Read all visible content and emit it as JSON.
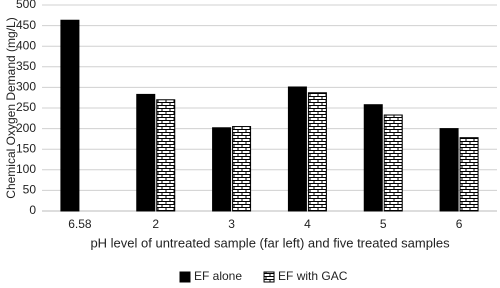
{
  "chart_data": {
    "type": "bar",
    "x_label": "pH level of untreated sample (far left) and five treated samples",
    "y_label": "Chemical Oxygen Demand (mg/L)",
    "categories": [
      "6.58",
      "2",
      "3",
      "4",
      "5",
      "6"
    ],
    "series": [
      {
        "name": "EF alone",
        "color": "#000000",
        "pattern": "solid",
        "values": [
          463,
          283,
          202,
          301,
          258,
          200
        ]
      },
      {
        "name": "EF with GAC",
        "color": "#000000",
        "pattern": "brick",
        "values": [
          null,
          270,
          205,
          287,
          233,
          178
        ]
      }
    ],
    "ylim": [
      0,
      500
    ],
    "yticks": [
      0,
      50,
      100,
      150,
      200,
      250,
      300,
      350,
      400,
      450,
      500
    ],
    "grid": true,
    "legend": "bottom"
  }
}
